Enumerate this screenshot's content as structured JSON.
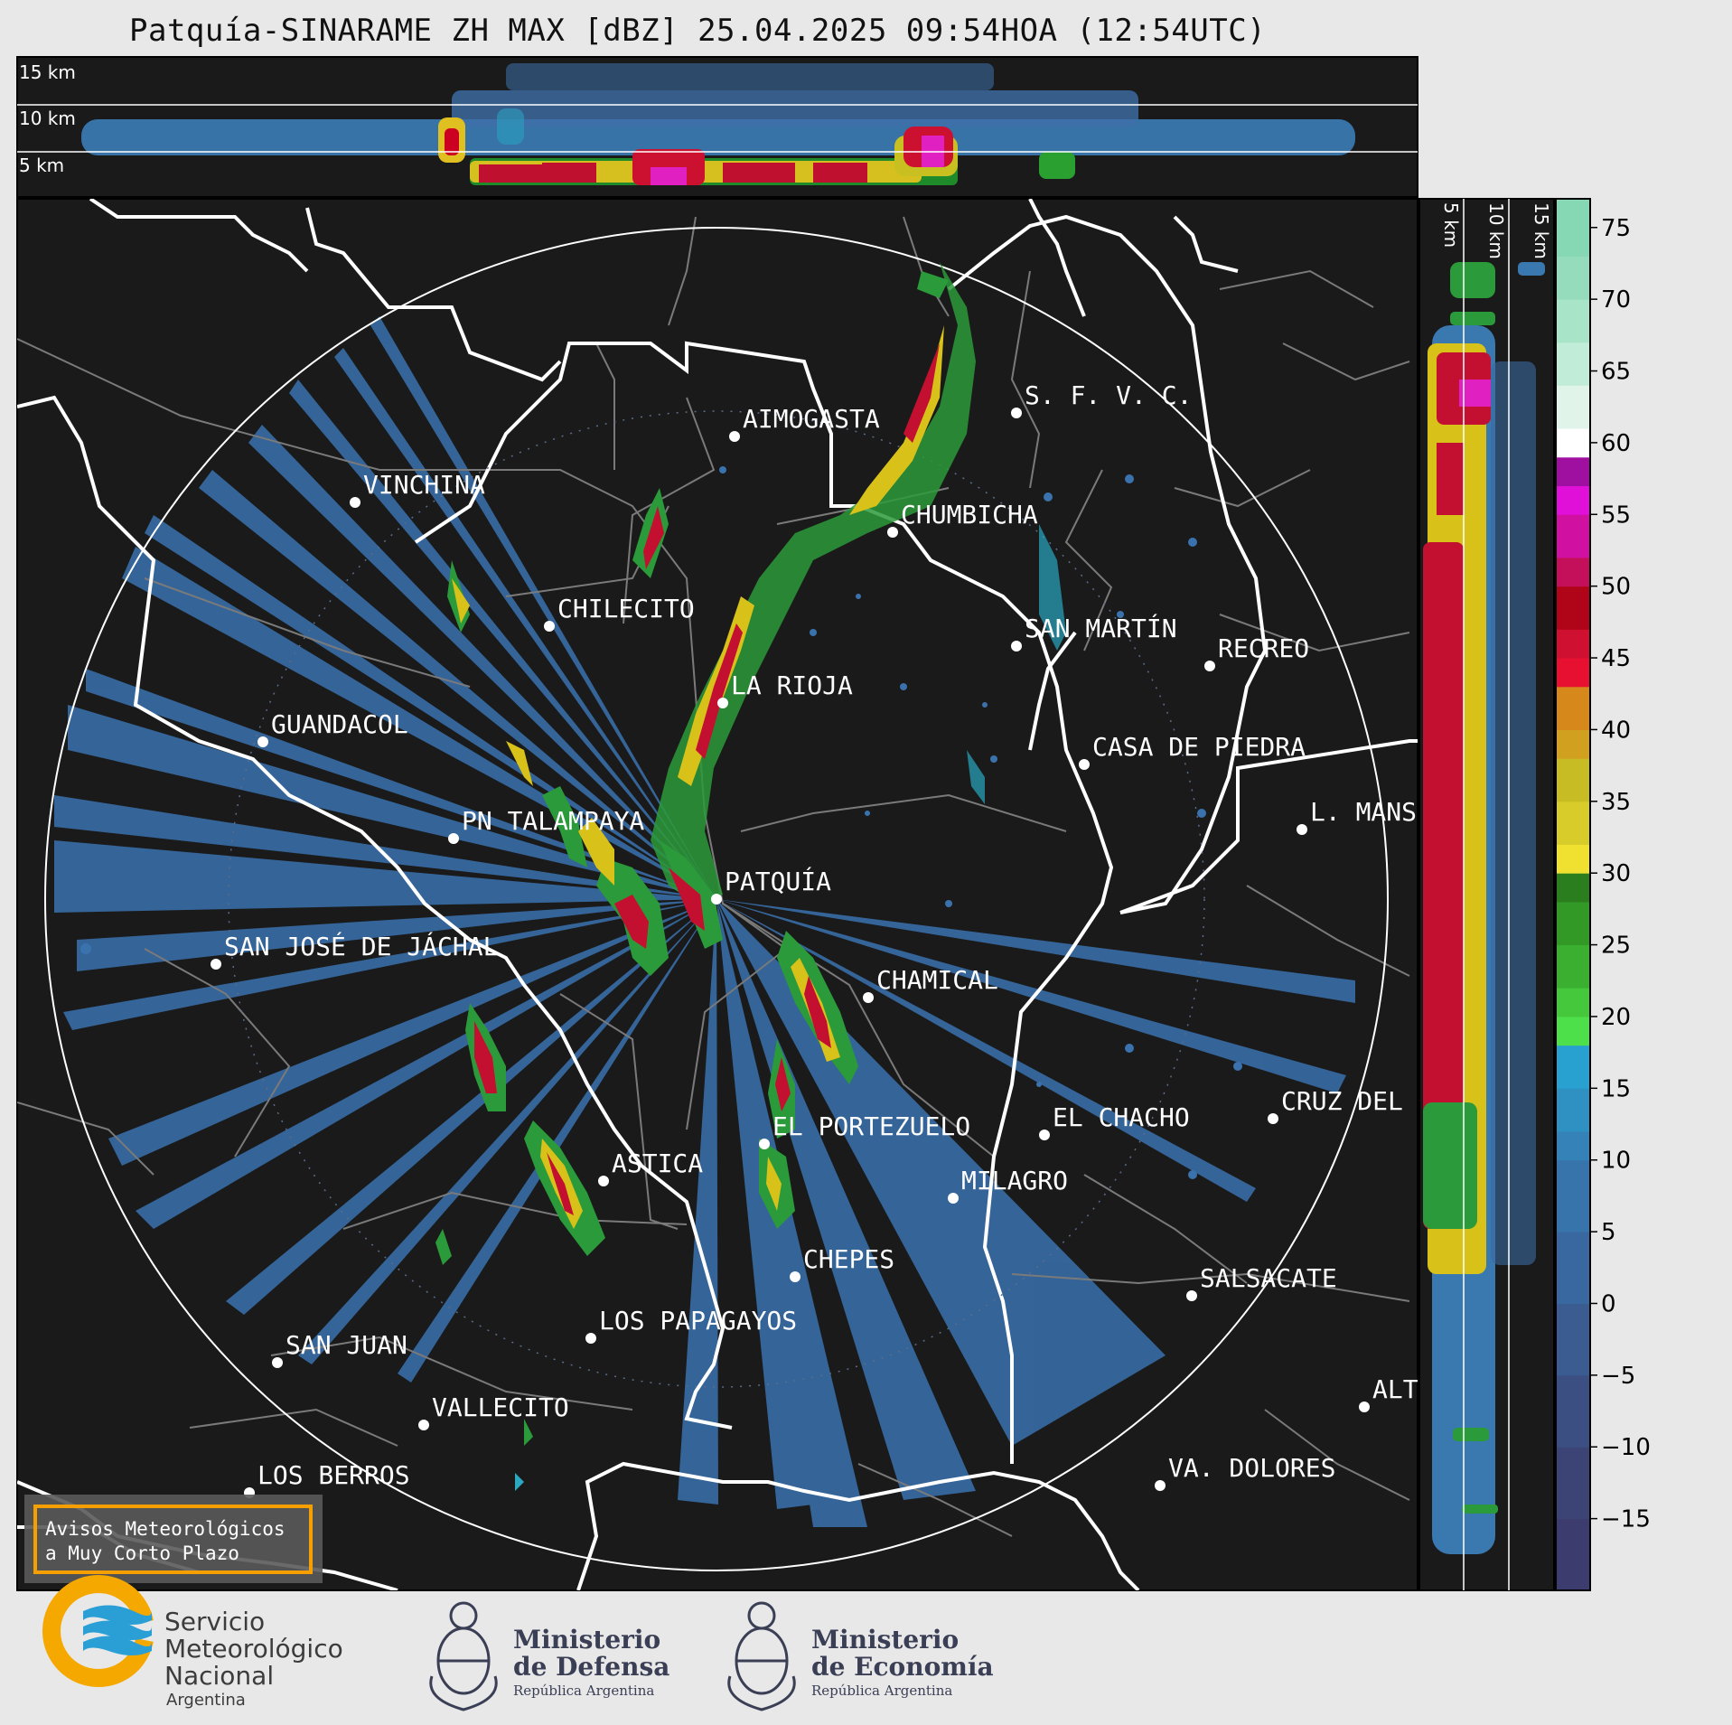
{
  "title": "Patquía-SINARAME ZH MAX [dBZ] 25.04.2025 09:54HOA (12:54UTC)",
  "top_panel": {
    "altitude_labels": [
      "15 km",
      "10 km",
      "5 km"
    ]
  },
  "side_panel": {
    "altitude_labels": [
      "5 km",
      "10 km",
      "15 km"
    ]
  },
  "colorbar": {
    "unit": "dBZ",
    "ticks": [
      "75",
      "70",
      "65",
      "60",
      "55",
      "50",
      "45",
      "40",
      "35",
      "30",
      "25",
      "20",
      "15",
      "10",
      "5",
      "0",
      "−5",
      "−10",
      "−15"
    ],
    "range": [
      -20,
      77
    ]
  },
  "cities": [
    {
      "name": "AIMOGASTA"
    },
    {
      "name": "S. F. V. C."
    },
    {
      "name": "VINCHINA"
    },
    {
      "name": "CHUMBICHA"
    },
    {
      "name": "CHILECITO"
    },
    {
      "name": "SAN MARTÍN"
    },
    {
      "name": "RECREO"
    },
    {
      "name": "LA RIOJA"
    },
    {
      "name": "GUANDACOL"
    },
    {
      "name": "CASA DE PIEDRA"
    },
    {
      "name": "L. MANS"
    },
    {
      "name": "PN TALAMPAYA"
    },
    {
      "name": "PATQUÍA"
    },
    {
      "name": "SAN JOSÉ DE JÁCHAL"
    },
    {
      "name": "CHAMICAL"
    },
    {
      "name": "CRUZ DEL"
    },
    {
      "name": "EL CHACHO"
    },
    {
      "name": "EL PORTEZUELO"
    },
    {
      "name": "ASTICA"
    },
    {
      "name": "MILAGRO"
    },
    {
      "name": "CHEPES"
    },
    {
      "name": "SALSACATE"
    },
    {
      "name": "LOS PAPAGAYOS"
    },
    {
      "name": "SAN JUAN"
    },
    {
      "name": "ALT"
    },
    {
      "name": "VALLECITO"
    },
    {
      "name": "LOS BERROS"
    },
    {
      "name": "VA. DOLORES"
    }
  ],
  "warning_box": {
    "line1": "Avisos Meteorológicos",
    "line2": "a Muy Corto Plazo"
  },
  "logos": {
    "smn": {
      "line1": "Servicio",
      "line2": "Meteorológico",
      "line3": "Nacional",
      "line4": "Argentina"
    },
    "defensa": {
      "line1": "Ministerio",
      "line2": "de Defensa",
      "line3": "República Argentina"
    },
    "economia": {
      "line1": "Ministerio",
      "line2": "de Economía",
      "line3": "República Argentina"
    }
  },
  "colors": {
    "background": "#1a1a1a",
    "range_ring": "#ffffff",
    "province_border": "#ffffff",
    "dept_border": "#7a7a7a",
    "low_echo": "#3a78b0",
    "smn_yellow": "#f5a800",
    "smn_blue": "#2a9fd6",
    "warning_border": "#f5a000"
  }
}
